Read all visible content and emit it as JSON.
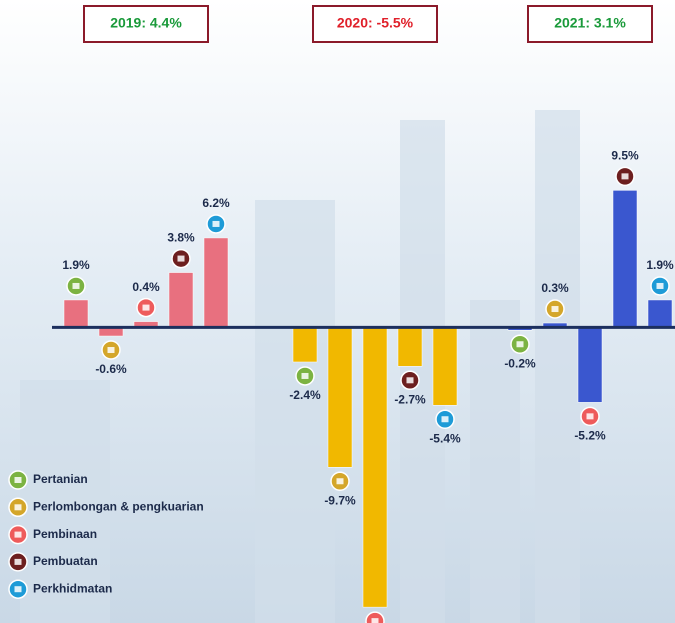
{
  "chart_data": {
    "type": "bar",
    "categories": [
      "Pertanian",
      "Perlombongan & pengkuarian",
      "Pembinaan",
      "Pembuatan",
      "Perkhidmatan"
    ],
    "category_colors": [
      "#7cb342",
      "#d4a62a",
      "#ee5b5b",
      "#6d1f1f",
      "#1e9bd7"
    ],
    "series": [
      {
        "name": "2019: 4.4%",
        "name_color": "#1a9a3a",
        "color": "#e8707f",
        "values": [
          1.9,
          -0.6,
          0.4,
          3.8,
          6.2
        ],
        "value_labels": [
          "1.9%",
          "-0.6%",
          "0.4%",
          "3.8%",
          "6.2%"
        ]
      },
      {
        "name": "2020: -5.5%",
        "name_color": "#e0202a",
        "color": "#f1b800",
        "values": [
          -2.4,
          -9.7,
          -19.4,
          -2.7,
          -5.4
        ],
        "value_labels": [
          "-2.4%",
          "-9.7%",
          null,
          "-2.7%",
          "-5.4%"
        ]
      },
      {
        "name": "2021: 3.1%",
        "name_color": "#1a9a3a",
        "color": "#3a57cf",
        "values": [
          -0.2,
          0.3,
          -5.2,
          9.5,
          1.9
        ],
        "value_labels": [
          "-0.2%",
          "0.3%",
          "-5.2%",
          "9.5%",
          "1.9%"
        ]
      }
    ],
    "ylim": [
      -20.5,
      22.7
    ]
  }
}
